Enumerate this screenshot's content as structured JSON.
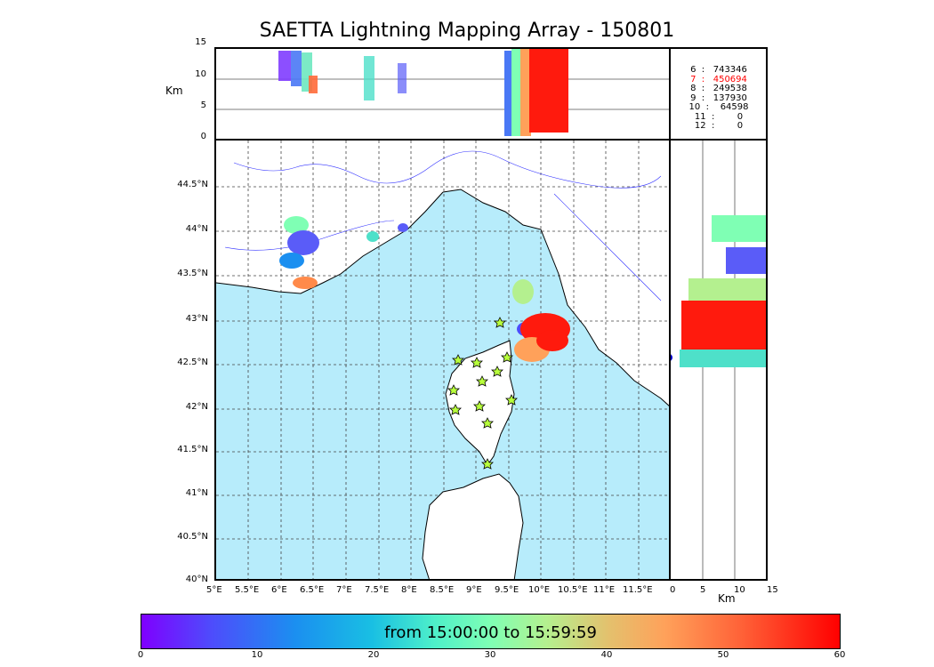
{
  "title": "SAETTA Lightning Mapping Array - 150801",
  "altitude_panel": {
    "unit_label": "Km",
    "y_ticks": [
      "15",
      "10",
      "5",
      "0"
    ]
  },
  "side_panel": {
    "unit_label": "Km",
    "x_ticks": [
      "0",
      "5",
      "10",
      "15"
    ]
  },
  "map": {
    "lon_ticks": [
      "5°E",
      "5.5°E",
      "6°E",
      "6.5°E",
      "7°E",
      "7.5°E",
      "8°E",
      "8.5°E",
      "9°E",
      "9.5°E",
      "10°E",
      "10.5°E",
      "11°E",
      "11.5°E"
    ],
    "lat_ticks": [
      "44.5°N",
      "44°N",
      "43.5°N",
      "43°N",
      "42.5°N",
      "42°N",
      "41.5°N",
      "41°N",
      "40.5°N",
      "40°N"
    ],
    "sea_color": "#b7ecfb",
    "station_icon": "star-icon"
  },
  "counts": [
    {
      "level": "6",
      "value": "743346",
      "color": "#000000"
    },
    {
      "level": "7",
      "value": "450694",
      "color": "#ff0000"
    },
    {
      "level": "8",
      "value": "249538",
      "color": "#000000"
    },
    {
      "level": "9",
      "value": "137930",
      "color": "#000000"
    },
    {
      "level": "10",
      "value": "64598",
      "color": "#000000"
    },
    {
      "level": "11",
      "value": "0",
      "color": "#000000"
    },
    {
      "level": "12",
      "value": "0",
      "color": "#000000"
    }
  ],
  "colorbar": {
    "caption": "from 15:00:00 to 15:59:59",
    "ticks": [
      "0",
      "10",
      "20",
      "30",
      "40",
      "50",
      "60"
    ]
  }
}
